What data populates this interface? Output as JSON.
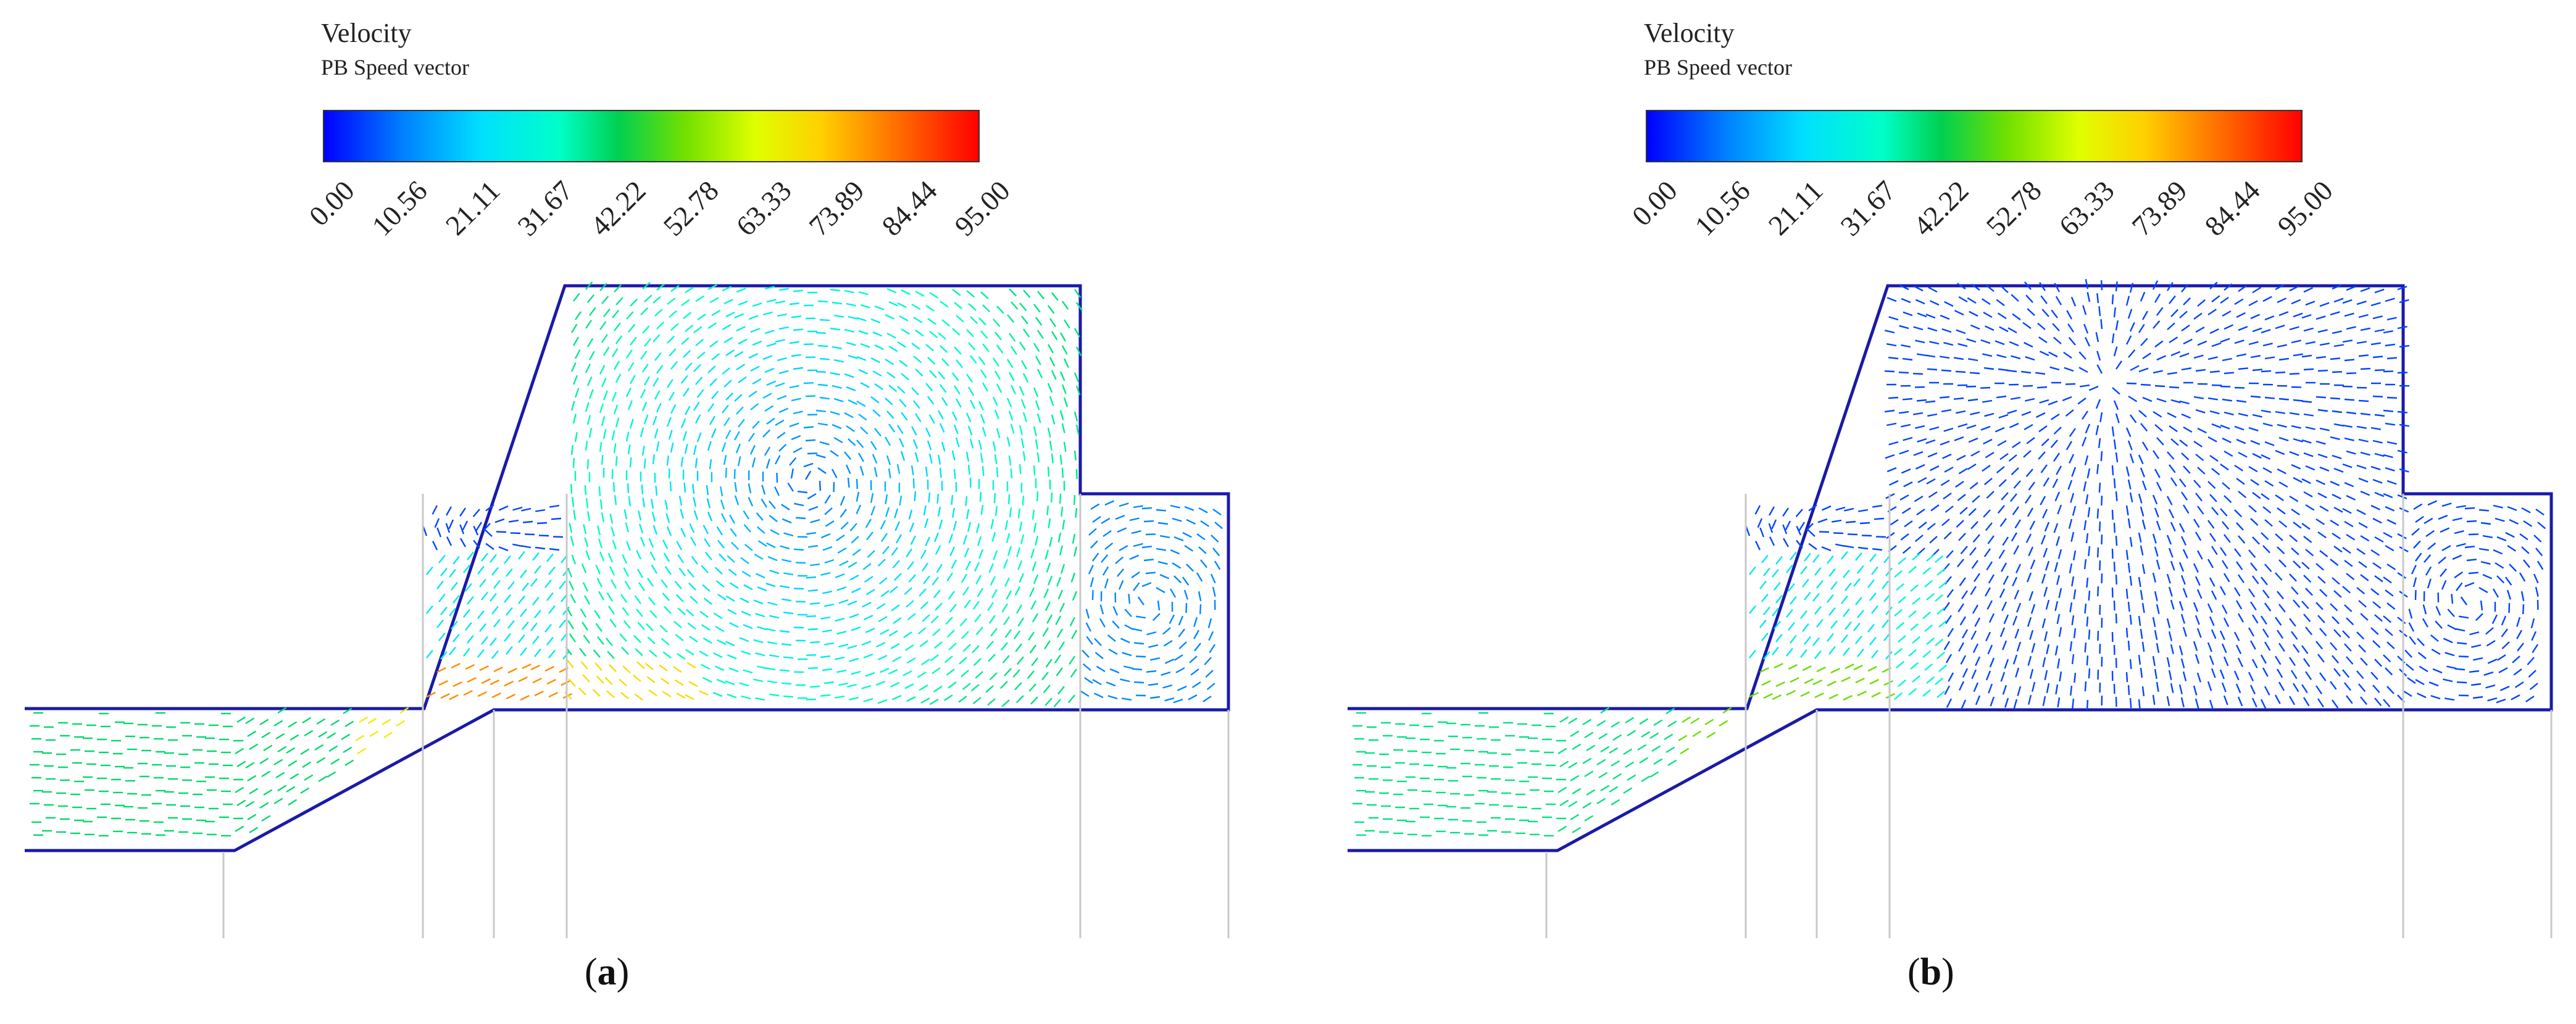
{
  "panels": [
    {
      "id": "a",
      "legend_title": "Velocity",
      "legend_subtitle": "PB Speed vector",
      "tick_labels": [
        "0.00",
        "10.56",
        "21.11",
        "31.67",
        "42.22",
        "52.78",
        "63.33",
        "73.89",
        "84.44",
        "95.00"
      ],
      "caption_open": "(",
      "caption_letter": "a",
      "caption_close": ")"
    },
    {
      "id": "b",
      "legend_title": "Velocity",
      "legend_subtitle": "PB Speed vector",
      "tick_labels": [
        "0.00",
        "10.56",
        "21.11",
        "31.67",
        "42.22",
        "52.78",
        "63.33",
        "73.89",
        "84.44",
        "95.00"
      ],
      "caption_open": "(",
      "caption_letter": "b",
      "caption_close": ")"
    }
  ],
  "colormap": [
    "#0000ff",
    "#0080ff",
    "#00e0ff",
    "#00ffc8",
    "#00d050",
    "#70e000",
    "#e0ff00",
    "#ffd000",
    "#ff6a00",
    "#ff0000"
  ]
}
